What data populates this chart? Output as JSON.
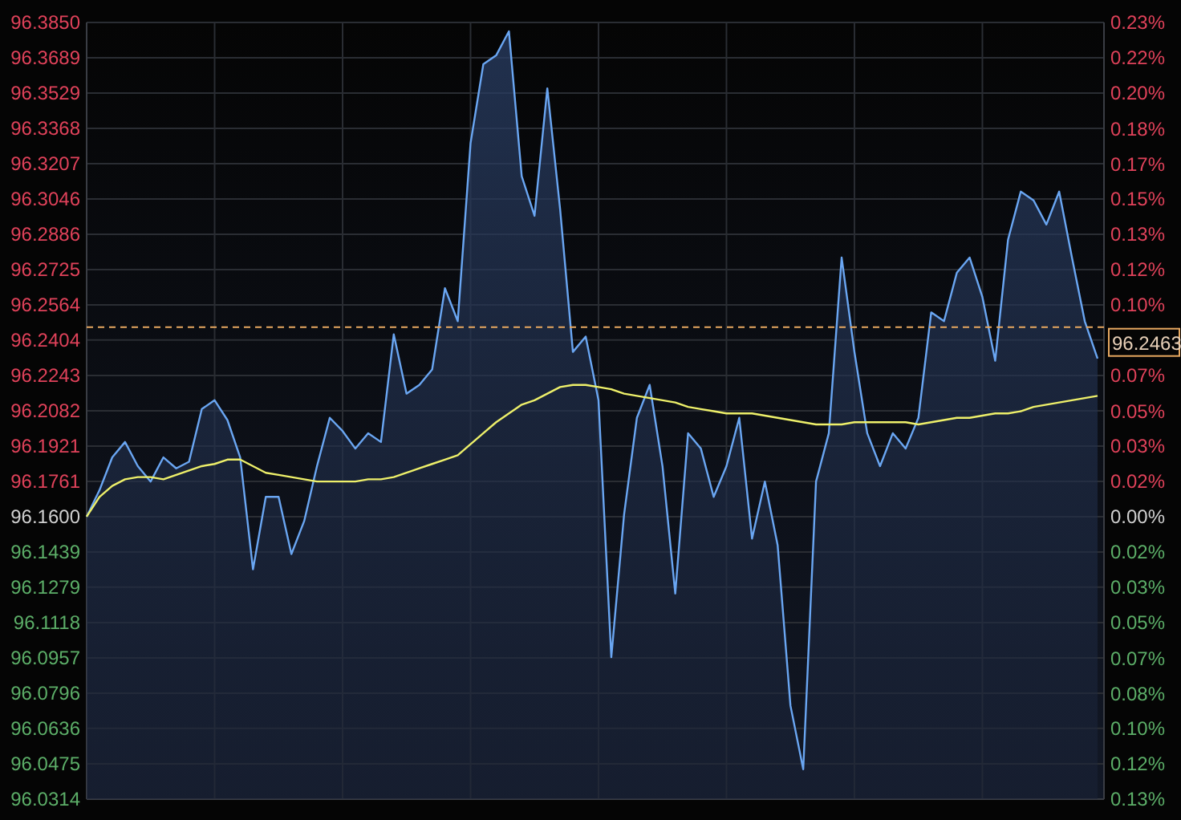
{
  "chart_data": {
    "type": "area",
    "categories": [
      null,
      null,
      null,
      null,
      null,
      null,
      null,
      null,
      null,
      null,
      null,
      null,
      null,
      null,
      null,
      null,
      null,
      null,
      null,
      null,
      null,
      null,
      null,
      null,
      null,
      null,
      null,
      null,
      null,
      null,
      null,
      null,
      null,
      null,
      null,
      null,
      null,
      null,
      null,
      null,
      null,
      null,
      null,
      null,
      null,
      null,
      null,
      null,
      null,
      null,
      null,
      null,
      null,
      null,
      null,
      null,
      null,
      null,
      null,
      null,
      null,
      null,
      null,
      null,
      null,
      null,
      null,
      null,
      null,
      null,
      null,
      null,
      null,
      null,
      null,
      null,
      null,
      null,
      null,
      null
    ],
    "series": [
      {
        "color": "#6aa6f2",
        "values": [
          96.16,
          96.172,
          96.187,
          96.194,
          96.183,
          96.176,
          96.187,
          96.182,
          96.185,
          96.209,
          96.213,
          96.204,
          96.187,
          96.136,
          96.169,
          96.169,
          96.143,
          96.158,
          96.183,
          96.205,
          96.199,
          96.191,
          96.198,
          96.194,
          96.243,
          96.216,
          96.22,
          96.227,
          96.264,
          96.249,
          96.33,
          96.366,
          96.37,
          96.381,
          96.315,
          96.297,
          96.355,
          96.3,
          96.235,
          96.242,
          96.213,
          96.096,
          96.161,
          96.205,
          96.22,
          96.183,
          96.125,
          96.198,
          96.191,
          96.169,
          96.183,
          96.205,
          96.15,
          96.176,
          96.147,
          96.074,
          96.045,
          96.176,
          96.198,
          96.278,
          96.235,
          96.198,
          96.183,
          96.198,
          96.191,
          96.205,
          96.253,
          96.249,
          96.271,
          96.278,
          96.26,
          96.231,
          96.286,
          96.308,
          96.304,
          96.293,
          96.308,
          96.278,
          96.249,
          96.232
        ]
      },
      {
        "type": "line",
        "color": "#eef06a",
        "values": [
          96.16,
          96.169,
          96.174,
          96.177,
          96.178,
          96.178,
          96.177,
          96.179,
          96.181,
          96.183,
          96.184,
          96.186,
          96.186,
          96.183,
          96.18,
          96.179,
          96.178,
          96.177,
          96.176,
          96.176,
          96.176,
          96.176,
          96.177,
          96.177,
          96.178,
          96.18,
          96.182,
          96.184,
          96.186,
          96.188,
          96.193,
          96.198,
          96.203,
          96.207,
          96.211,
          96.213,
          96.216,
          96.219,
          96.22,
          96.22,
          96.219,
          96.218,
          96.216,
          96.215,
          96.214,
          96.213,
          96.212,
          96.21,
          96.209,
          96.208,
          96.207,
          96.207,
          96.207,
          96.206,
          96.205,
          96.204,
          96.203,
          96.202,
          96.202,
          96.202,
          96.203,
          96.203,
          96.203,
          96.203,
          96.203,
          96.202,
          96.203,
          96.204,
          96.205,
          96.205,
          96.206,
          96.207,
          96.207,
          96.208,
          96.21,
          96.211,
          96.212,
          96.213,
          96.214,
          96.215
        ]
      }
    ],
    "ylim": [
      96.0314,
      96.385
    ],
    "yticks": [
      {
        "value": 96.385,
        "label": "96.3850"
      },
      96.3689,
      96.3529,
      96.3368,
      96.3207,
      96.3046,
      96.2886,
      96.2725,
      96.2564,
      96.2404,
      96.2243,
      96.2082,
      96.1921,
      96.1761,
      {
        "value": 96.16,
        "label": "96.1600"
      },
      96.1439,
      96.1279,
      96.1118,
      96.0957,
      96.0796,
      96.0636,
      96.0475,
      96.0314
    ],
    "y2lim": [
      -0.1337,
      0.234
    ],
    "y2ticks": [
      {
        "value": 0.234,
        "label": "0.23%"
      },
      {
        "value": 0.2173,
        "label": "0.22%"
      },
      {
        "value": 0.2006,
        "label": "0.20%"
      },
      {
        "value": 0.1838,
        "label": "0.18%"
      },
      {
        "value": 0.1671,
        "label": "0.17%"
      },
      {
        "value": 0.1504,
        "label": "0.15%"
      },
      {
        "value": 0.1337,
        "label": "0.13%"
      },
      {
        "value": 0.117,
        "label": "0.12%"
      },
      {
        "value": 0.1003,
        "label": "0.10%"
      },
      {
        "value": 0.0836,
        "label": null
      },
      {
        "value": 0.0669,
        "label": "0.07%"
      },
      {
        "value": 0.0501,
        "label": "0.05%"
      },
      {
        "value": 0.0334,
        "label": "0.03%"
      },
      {
        "value": 0.0167,
        "label": "0.02%"
      },
      {
        "value": 0,
        "label": "0.00%"
      },
      {
        "value": -0.0167,
        "label": "0.02%"
      },
      {
        "value": -0.0334,
        "label": "0.03%"
      },
      {
        "value": -0.0501,
        "label": "0.05%"
      },
      {
        "value": -0.0669,
        "label": "0.07%"
      },
      {
        "value": -0.0836,
        "label": "0.08%"
      },
      {
        "value": -0.1003,
        "label": "0.10%"
      },
      {
        "value": -0.117,
        "label": "0.12%"
      },
      {
        "value": -0.1337,
        "label": "0.13%"
      }
    ],
    "ref_lines": [
      {
        "axis": "y",
        "value": 96.2463,
        "label": "96.2463",
        "color": "#e8a860",
        "line_style": "dashed"
      }
    ],
    "grid": true,
    "marker": "none"
  }
}
